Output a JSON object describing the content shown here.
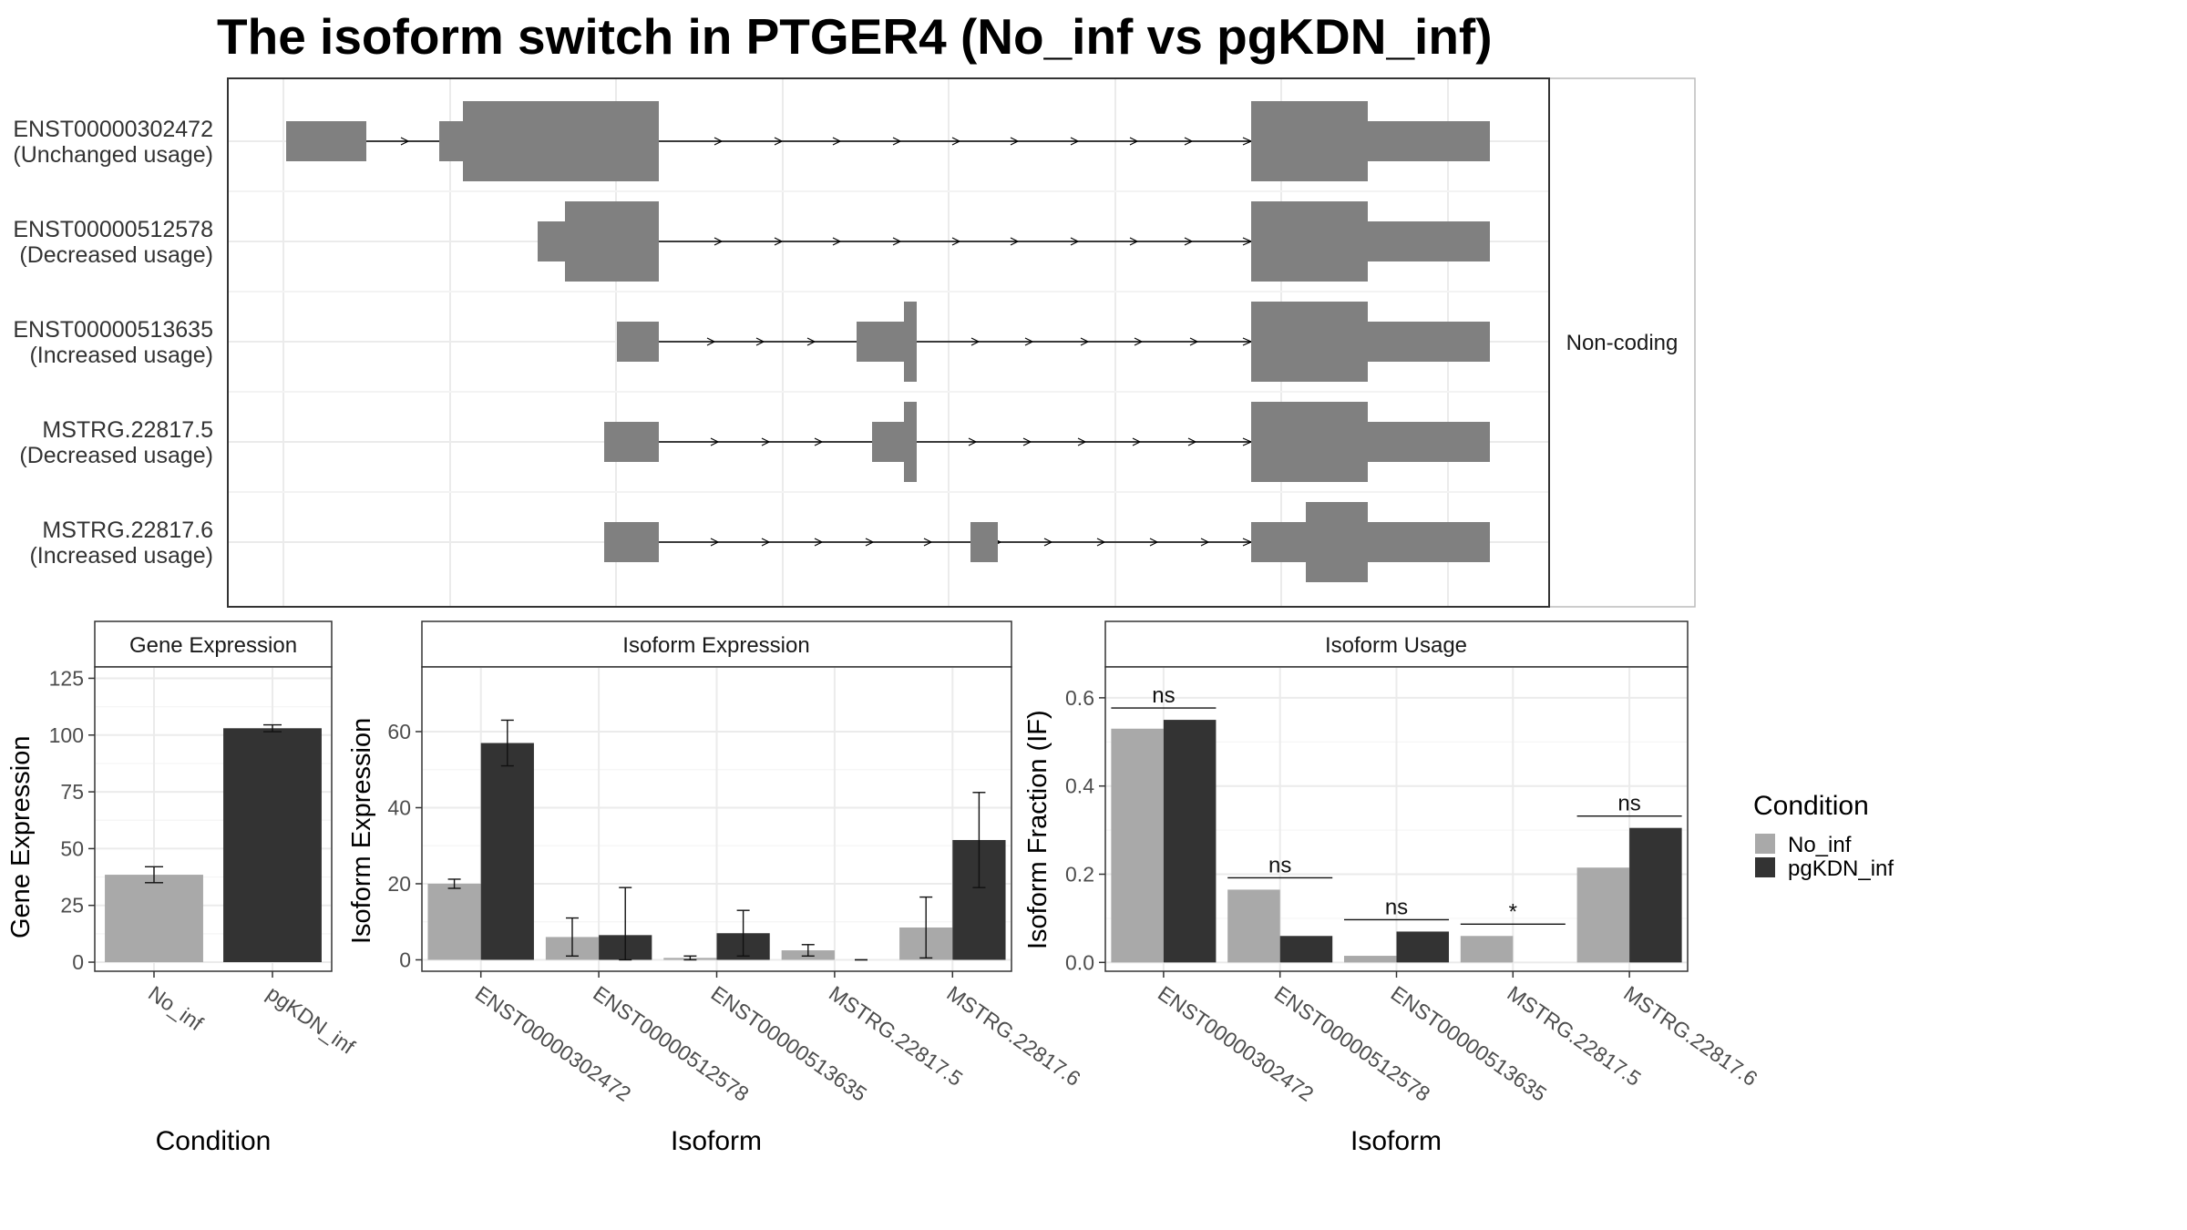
{
  "title": "The isoform switch in PTGER4 (No_inf vs pgKDN_inf)",
  "colors": {
    "no_inf": "#a9a9a9",
    "pgkdn_inf": "#333333",
    "structure": "#808080"
  },
  "structure": {
    "facet_label": "Non-coding",
    "isoforms": [
      {
        "id": "ENST00000302472",
        "usage": "(Unchanged usage)"
      },
      {
        "id": "ENST00000512578",
        "usage": "(Decreased usage)"
      },
      {
        "id": "ENST00000513635",
        "usage": "(Increased usage)"
      },
      {
        "id": "MSTRG.22817.5",
        "usage": "(Decreased usage)"
      },
      {
        "id": "MSTRG.22817.6",
        "usage": "(Increased usage)"
      }
    ]
  },
  "legend": {
    "title": "Condition",
    "items": [
      "No_inf",
      "pgKDN_inf"
    ]
  },
  "chart_data": [
    {
      "type": "bar",
      "title": "Gene Expression",
      "xlabel": "Condition",
      "ylabel": "Gene Expression",
      "categories": [
        "No_inf",
        "pgKDN_inf"
      ],
      "values": [
        38.5,
        103
      ],
      "errors": [
        3.5,
        1.5
      ],
      "yticks": [
        0,
        25,
        50,
        75,
        100,
        125
      ],
      "ylim": [
        -4,
        130
      ]
    },
    {
      "type": "bar",
      "title": "Isoform Expression",
      "xlabel": "Isoform",
      "ylabel": "Isoform Expression",
      "categories": [
        "ENST00000302472",
        "ENST00000512578",
        "ENST00000513635",
        "MSTRG.22817.5",
        "MSTRG.22817.6"
      ],
      "series": [
        {
          "name": "No_inf",
          "values": [
            20,
            6,
            0.5,
            2.5,
            8.5
          ],
          "errors": [
            1.2,
            5,
            0.5,
            1.5,
            8
          ]
        },
        {
          "name": "pgKDN_inf",
          "values": [
            57,
            6.5,
            7,
            0,
            31.5
          ],
          "errors": [
            6,
            12.5,
            6,
            0,
            12.5
          ]
        }
      ],
      "yticks": [
        0,
        20,
        40,
        60
      ],
      "ylim": [
        -3,
        77
      ]
    },
    {
      "type": "bar",
      "title": "Isoform Usage",
      "xlabel": "Isoform",
      "ylabel": "Isoform Fraction (IF)",
      "categories": [
        "ENST00000302472",
        "ENST00000512578",
        "ENST00000513635",
        "MSTRG.22817.5",
        "MSTRG.22817.6"
      ],
      "series": [
        {
          "name": "No_inf",
          "values": [
            0.53,
            0.165,
            0.015,
            0.06,
            0.215
          ]
        },
        {
          "name": "pgKDN_inf",
          "values": [
            0.55,
            0.06,
            0.07,
            0.0,
            0.305
          ]
        }
      ],
      "significance": [
        "ns",
        "ns",
        "ns",
        "*",
        "ns"
      ],
      "yticks": [
        0.0,
        0.2,
        0.4,
        0.6
      ],
      "ylim": [
        -0.02,
        0.67
      ]
    }
  ]
}
